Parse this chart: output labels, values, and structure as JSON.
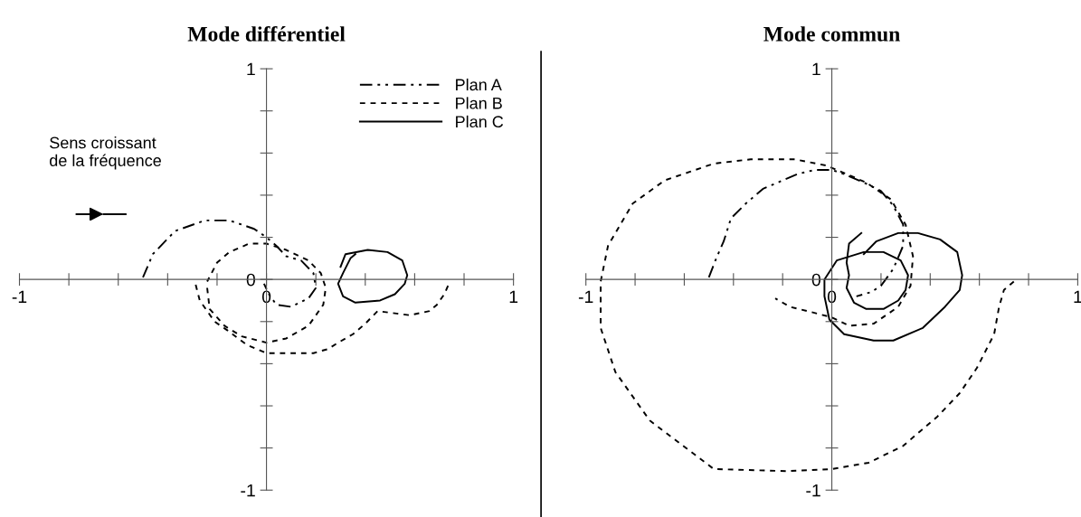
{
  "chart_data": [
    {
      "type": "line",
      "title": "Mode différentiel",
      "legend": "top right",
      "grid": false,
      "xlim": [
        -1,
        1
      ],
      "ylim": [
        -1,
        1
      ],
      "xticks": [
        {
          "value": -1,
          "label": "-1"
        },
        {
          "value": -0.8,
          "label": null
        },
        {
          "value": -0.6,
          "label": null
        },
        {
          "value": -0.4,
          "label": null
        },
        {
          "value": -0.2,
          "label": null
        },
        {
          "value": 0,
          "label": "0"
        },
        {
          "value": 0.2,
          "label": null
        },
        {
          "value": 0.4,
          "label": null
        },
        {
          "value": 0.6,
          "label": null
        },
        {
          "value": 0.8,
          "label": null
        },
        {
          "value": 1,
          "label": "1"
        }
      ],
      "yticks": [
        {
          "value": -1,
          "label": "-1"
        },
        {
          "value": -0.8,
          "label": null
        },
        {
          "value": -0.6,
          "label": null
        },
        {
          "value": -0.4,
          "label": null
        },
        {
          "value": -0.2,
          "label": null
        },
        {
          "value": 0,
          "label": "0"
        },
        {
          "value": 0.2,
          "label": null
        },
        {
          "value": 0.4,
          "label": null
        },
        {
          "value": 0.6,
          "label": null
        },
        {
          "value": 0.8,
          "label": null
        },
        {
          "value": 1,
          "label": "1"
        }
      ],
      "annotations": [
        "Sens croissant\nde la fréquence"
      ],
      "series": [
        {
          "name": "Plan A",
          "color": "#000000",
          "line_style": "dashed",
          "x": [
            -0.5,
            -0.46,
            -0.37,
            -0.25,
            -0.15,
            -0.05,
            0,
            0.04,
            0.08,
            0.14,
            0.19,
            0.2,
            0.17,
            0.1,
            0.04,
            0.01,
            -0.01
          ],
          "values": [
            0.01,
            0.12,
            0.23,
            0.28,
            0.28,
            0.24,
            0.2,
            0.16,
            0.11,
            0.09,
            0.03,
            -0.04,
            -0.09,
            -0.13,
            -0.12,
            -0.07,
            -0.02
          ]
        },
        {
          "name": "Plan B",
          "color": "#000000",
          "line_style": "dotted",
          "x": [
            0.735,
            0.72,
            0.69,
            0.66,
            0.58,
            0.45,
            0.4,
            0.35,
            0.29,
            0.25,
            0.19,
            0.09,
            0,
            -0.08,
            -0.16,
            -0.21,
            -0.27,
            -0.29,
            null,
            -0.24,
            -0.23,
            -0.17,
            -0.1,
            0,
            0.08,
            0.17,
            0.23,
            0.24,
            0.22,
            0.17,
            0.08,
            0,
            -0.07,
            -0.15,
            -0.2,
            -0.24
          ],
          "values": [
            -0.03,
            -0.07,
            -0.12,
            -0.15,
            -0.17,
            -0.15,
            -0.21,
            -0.26,
            -0.3,
            -0.33,
            -0.35,
            -0.35,
            -0.35,
            -0.31,
            -0.24,
            -0.2,
            -0.1,
            -0.01,
            null,
            -0.04,
            -0.14,
            -0.22,
            -0.27,
            -0.3,
            -0.28,
            -0.22,
            -0.12,
            -0.04,
            0.03,
            0.09,
            0.14,
            0.17,
            0.17,
            0.13,
            0.08,
            -0.01
          ]
        },
        {
          "name": "Plan C",
          "color": "#000000",
          "line_style": "solid",
          "x": [
            0.3,
            0.32,
            0.41,
            0.49,
            0.55,
            0.57,
            0.56,
            0.52,
            0.46,
            0.36,
            0.31,
            0.29,
            0.31,
            0.34,
            0.36
          ],
          "values": [
            0.06,
            0.12,
            0.14,
            0.13,
            0.09,
            0.02,
            -0.02,
            -0.07,
            -0.1,
            -0.11,
            -0.08,
            -0.02,
            0.03,
            0.1,
            0.12
          ]
        }
      ]
    },
    {
      "type": "line",
      "title": "Mode commun",
      "grid": false,
      "xlim": [
        -1,
        1
      ],
      "ylim": [
        -1,
        1
      ],
      "xticks": [
        {
          "value": -1,
          "label": "-1"
        },
        {
          "value": -0.8,
          "label": null
        },
        {
          "value": -0.6,
          "label": null
        },
        {
          "value": -0.4,
          "label": null
        },
        {
          "value": -0.2,
          "label": null
        },
        {
          "value": 0,
          "label": "0"
        },
        {
          "value": 0.2,
          "label": null
        },
        {
          "value": 0.4,
          "label": null
        },
        {
          "value": 0.6,
          "label": null
        },
        {
          "value": 0.8,
          "label": null
        },
        {
          "value": 1,
          "label": "1"
        }
      ],
      "yticks": [
        {
          "value": -1,
          "label": "-1"
        },
        {
          "value": -0.8,
          "label": null
        },
        {
          "value": -0.6,
          "label": null
        },
        {
          "value": -0.4,
          "label": null
        },
        {
          "value": -0.2,
          "label": null
        },
        {
          "value": 0,
          "label": "0"
        },
        {
          "value": 0.2,
          "label": null
        },
        {
          "value": 0.4,
          "label": null
        },
        {
          "value": 0.6,
          "label": null
        },
        {
          "value": 0.8,
          "label": null
        },
        {
          "value": 1,
          "label": "1"
        }
      ],
      "series": [
        {
          "color": "#000000",
          "line_style": "dashed",
          "x": [
            -0.5,
            -0.47,
            -0.44,
            -0.41,
            -0.35,
            -0.28,
            -0.14,
            -0.07,
            0,
            0.05,
            0.13,
            0.2,
            0.25,
            0.29,
            0.29,
            0.25,
            0.2,
            0.16,
            0.1
          ],
          "values": [
            0.01,
            0.1,
            0.18,
            0.29,
            0.36,
            0.43,
            0.5,
            0.52,
            0.52,
            0.5,
            0.46,
            0.42,
            0.35,
            0.26,
            0.16,
            0.05,
            -0.03,
            -0.06,
            -0.08
          ]
        },
        {
          "color": "#000000",
          "line_style": "dotted",
          "x": [
            0.74,
            0.7,
            0.68,
            0.66,
            0.59,
            0.52,
            0.43,
            0.29,
            0.15,
            0,
            -0.18,
            -0.48,
            -0.74,
            -0.88,
            -0.94,
            -0.94,
            -0.91,
            -0.81,
            -0.68,
            -0.48,
            -0.33,
            -0.15,
            -0.02,
            0.14,
            0.24,
            0.3,
            0.33,
            0.32,
            0.27,
            0.17,
            0.07,
            0,
            -0.1,
            -0.17,
            -0.23
          ],
          "values": [
            -0.01,
            -0.05,
            -0.13,
            -0.26,
            -0.42,
            -0.54,
            -0.65,
            -0.79,
            -0.87,
            -0.9,
            -0.91,
            -0.9,
            -0.67,
            -0.44,
            -0.23,
            -0.01,
            0.16,
            0.36,
            0.47,
            0.55,
            0.57,
            0.57,
            0.54,
            0.46,
            0.38,
            0.26,
            0.11,
            -0.03,
            -0.13,
            -0.21,
            -0.22,
            -0.18,
            -0.15,
            -0.13,
            -0.09
          ]
        },
        {
          "color": "#000000",
          "line_style": "solid",
          "x": [
            0.12,
            0.07,
            0.06,
            0.07,
            0.06,
            0.09,
            0.14,
            0.21,
            0.27,
            0.3,
            0.31,
            0.28,
            0.21,
            0.13,
            0.02,
            -0.03,
            -0.03,
            -0.01,
            0.05,
            0.17,
            0.25,
            0.37,
            0.46,
            0.52,
            0.53,
            0.51,
            0.44,
            0.35,
            0.27,
            0.18,
            0.13
          ],
          "values": [
            0.22,
            0.17,
            0.08,
            0.02,
            -0.04,
            -0.11,
            -0.14,
            -0.14,
            -0.1,
            -0.05,
            0.02,
            0.09,
            0.13,
            0.13,
            0.09,
            0,
            -0.08,
            -0.19,
            -0.26,
            -0.29,
            -0.29,
            -0.23,
            -0.13,
            -0.05,
            0.02,
            0.13,
            0.19,
            0.22,
            0.22,
            0.18,
            0.12
          ]
        }
      ]
    }
  ]
}
